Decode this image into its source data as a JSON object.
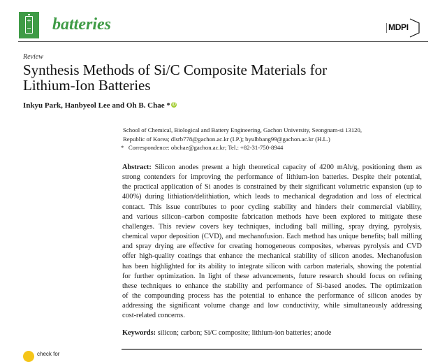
{
  "header": {
    "journal_name": "batteries",
    "logo_plus": "+",
    "logo_minus": "−",
    "publisher": "MDPI",
    "brand_color": "#3f9b46"
  },
  "article": {
    "type": "Review",
    "title_lines": [
      "Synthesis Methods of Si/C Composite Materials for",
      "Lithium-Ion Batteries"
    ],
    "authors": "Inkyu Park, Hanbyeol Lee and Oh B. Chae *",
    "orcid_label": "iD",
    "affiliation_lines": [
      "School of Chemical, Biological and Battery Engineering, Gachon University, Seongnam-si 13120,",
      "Republic of Korea; dlsrb778@gachon.ac.kr (I.P.); byulbbang99@gachon.ac.kr (H.L.)"
    ],
    "correspondence": "*   Correspondence: obchae@gachon.ac.kr; Tel.: +82-31-750-8944",
    "abstract_label": "Abstract:",
    "abstract_lines": [
      " Silicon anodes present a high theoretical capacity of 4200 mAh/g, positioning them as",
      "strong contenders for improving the performance of lithium-ion batteries. Despite their potential,",
      "the practical application of Si anodes is constrained by their significant volumetric expansion (up to",
      "400%) during lithiation/delithiation, which leads to mechanical degradation and loss of electrical",
      "contact. This issue contributes to poor cycling stability and hinders their commercial viability,",
      "and various silicon–carbon composite fabrication methods have been explored to mitigate these",
      "challenges. This review covers key techniques, including ball milling, spray drying, pyrolysis,",
      "chemical vapor deposition (CVD), and mechanofusion. Each method has unique benefits; ball milling",
      "and spray drying are effective for creating homogeneous composites, whereas pyrolysis and CVD",
      "offer high-quality coatings that enhance the mechanical stability of silicon anodes. Mechanofusion",
      "has been highlighted for its ability to integrate silicon with carbon materials, showing the potential",
      "for further optimization. In light of these advancements, future research should focus on refining",
      "these techniques to enhance the stability and performance of Si-based anodes. The optimization",
      "of the compounding process has the potential to enhance the performance of silicon anodes by",
      "addressing the significant volume change and low conductivity, while simultaneously addressing",
      "cost-related concerns."
    ],
    "keywords_label": "Keywords:",
    "keywords": " silicon; carbon; Si/C composite; lithium-ion batteries; anode"
  },
  "sidebar": {
    "check_updates_text": "check for"
  }
}
